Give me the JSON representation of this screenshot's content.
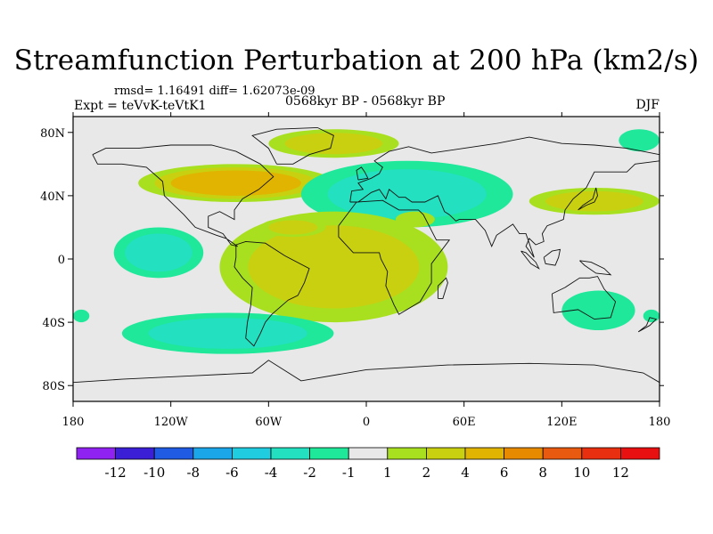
{
  "title": "Streamfunction Perturbation at 200 hPa (km2/s)",
  "subtitle_stats": "rmsd= 1.16491 diff= 1.62073e-09",
  "subtitle_expt": "Expt = teVvK-teVtK1",
  "subtitle_period": "0568kyr BP - 0568kyr BP",
  "subtitle_season": "DJF",
  "chart_data": {
    "type": "heatmap",
    "title": "Streamfunction Perturbation at 200 hPa (km2/s)",
    "x_ticks": [
      {
        "value": -180,
        "label": "180"
      },
      {
        "value": -120,
        "label": "120W"
      },
      {
        "value": -60,
        "label": "60W"
      },
      {
        "value": 0,
        "label": "0"
      },
      {
        "value": 60,
        "label": "60E"
      },
      {
        "value": 120,
        "label": "120E"
      },
      {
        "value": 180,
        "label": "180"
      }
    ],
    "y_ticks": [
      {
        "value": 80,
        "label": "80N"
      },
      {
        "value": 40,
        "label": "40N"
      },
      {
        "value": 0,
        "label": "0"
      },
      {
        "value": -40,
        "label": "40S"
      },
      {
        "value": -80,
        "label": "80S"
      }
    ],
    "xlim": [
      -180,
      180
    ],
    "ylim": [
      -90,
      90
    ],
    "colorbar": {
      "labels": [
        "-12",
        "-10",
        "-8",
        "-6",
        "-4",
        "-2",
        "-1",
        "1",
        "2",
        "4",
        "6",
        "8",
        "10",
        "12"
      ],
      "colors": [
        "#8f22f0",
        "#3a1fd6",
        "#1f5ce3",
        "#1aa6e8",
        "#20cce0",
        "#22e0c0",
        "#1fe89a",
        "#e8e8e8",
        "#a8e020",
        "#c8d010",
        "#e0b400",
        "#e88a00",
        "#e85a10",
        "#e83010",
        "#e81010"
      ]
    },
    "features": [
      {
        "sign": "positive",
        "levels": [
          "1",
          "2",
          "4"
        ],
        "lon": [
          -140,
          -20
        ],
        "lat": [
          36,
          60
        ],
        "peak": "4"
      },
      {
        "sign": "positive",
        "levels": [
          "1",
          "2"
        ],
        "lon": [
          -60,
          20
        ],
        "lat": [
          64,
          82
        ]
      },
      {
        "sign": "negative",
        "levels": [
          "-1",
          "-2"
        ],
        "lon": [
          -40,
          90
        ],
        "lat": [
          20,
          62
        ],
        "peak": "-2"
      },
      {
        "sign": "negative",
        "levels": [
          "-1",
          "-2"
        ],
        "lon": [
          -155,
          -100
        ],
        "lat": [
          -12,
          20
        ]
      },
      {
        "sign": "positive",
        "levels": [
          "1",
          "2"
        ],
        "lon": [
          -90,
          50
        ],
        "lat": [
          -40,
          30
        ]
      },
      {
        "sign": "positive",
        "levels": [
          "1",
          "2"
        ],
        "lon": [
          -65,
          -25
        ],
        "lat": [
          14,
          26
        ],
        "peak": "2"
      },
      {
        "sign": "negative",
        "levels": [
          "-1",
          "-2"
        ],
        "lon": [
          -150,
          -20
        ],
        "lat": [
          -60,
          -34
        ]
      },
      {
        "sign": "negative",
        "levels": [
          "-1"
        ],
        "lon": [
          120,
          165
        ],
        "lat": [
          -45,
          -20
        ]
      },
      {
        "sign": "positive",
        "levels": [
          "1",
          "2"
        ],
        "lon": [
          100,
          180
        ],
        "lat": [
          28,
          45
        ]
      },
      {
        "sign": "negative",
        "levels": [
          "-1"
        ],
        "lon": [
          155,
          180
        ],
        "lat": [
          68,
          82
        ]
      },
      {
        "sign": "positive",
        "levels": [
          "1"
        ],
        "lon": [
          18,
          42
        ],
        "lat": [
          20,
          30
        ]
      },
      {
        "sign": "negative",
        "levels": [
          "-1"
        ],
        "lon": [
          -180,
          -170
        ],
        "lat": [
          -40,
          -32
        ]
      },
      {
        "sign": "negative",
        "levels": [
          "-1"
        ],
        "lon": [
          170,
          180
        ],
        "lat": [
          -40,
          -32
        ]
      }
    ]
  }
}
